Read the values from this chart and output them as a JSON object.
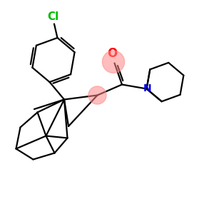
{
  "background_color": "#ffffff",
  "bond_color": "#000000",
  "cl_color": "#00bb00",
  "o_color": "#ff0000",
  "n_color": "#0000ee",
  "highlight_color": "#ff8888",
  "highlight_alpha": 0.55,
  "figsize": [
    3.0,
    3.0
  ],
  "dpi": 100,
  "lw": 1.6,
  "xlim": [
    0,
    10
  ],
  "ylim": [
    0,
    10
  ]
}
